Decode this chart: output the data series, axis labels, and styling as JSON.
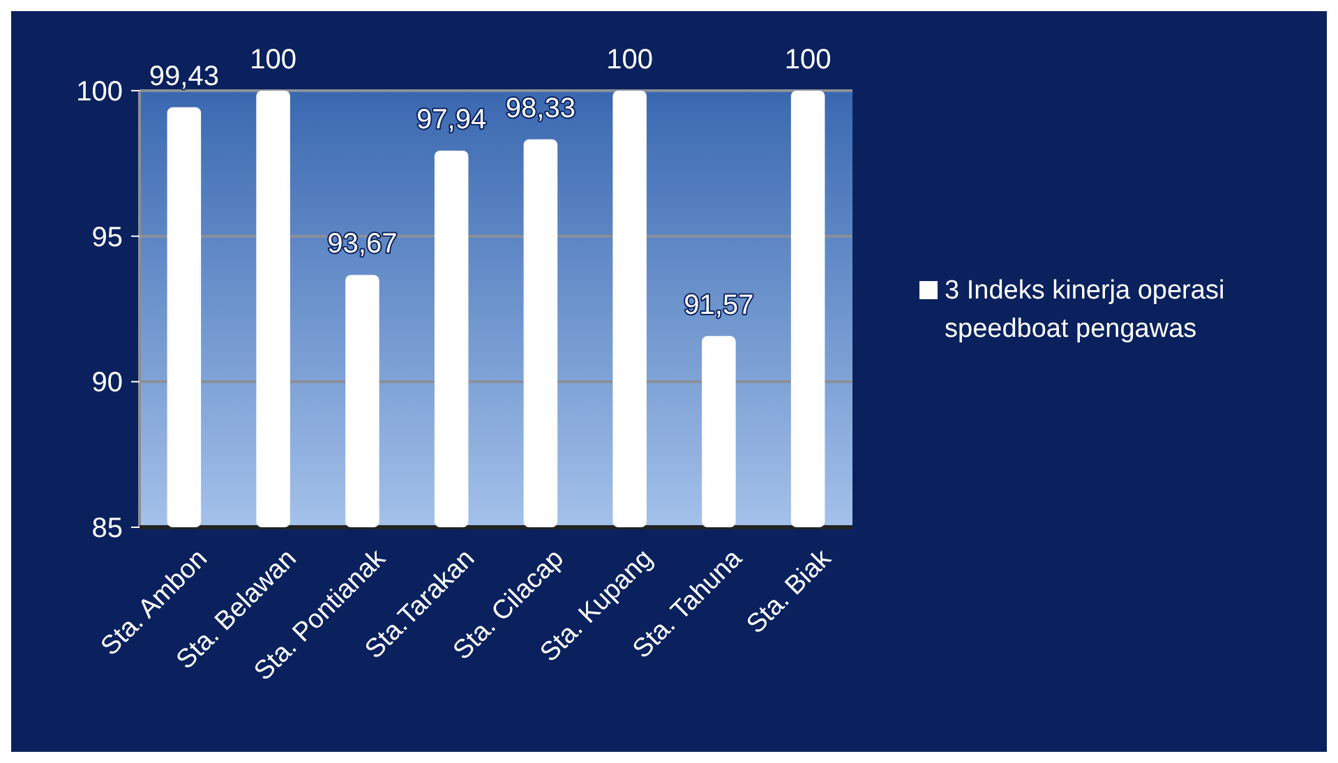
{
  "chart_data": {
    "type": "bar",
    "categories": [
      "Sta. Ambon",
      "Sta. Belawan",
      "Sta. Pontianak",
      "Sta.Tarakan",
      "Sta. Cilacap",
      "Sta. Kupang",
      "Sta. Tahuna",
      "Sta. Biak"
    ],
    "series": [
      {
        "name": "3 Indeks kinerja operasi speedboat pengawas",
        "color": "#ffffff",
        "values": [
          99.43,
          100,
          93.67,
          97.94,
          98.33,
          100,
          91.57,
          100
        ],
        "value_labels": [
          "99,43",
          "100",
          "93,67",
          "97,94",
          "98,33",
          "100",
          "91,57",
          "100"
        ]
      }
    ],
    "ylim": [
      85,
      100
    ],
    "yticks": [
      85,
      90,
      95,
      100
    ],
    "grid": "y",
    "legend": "right"
  }
}
